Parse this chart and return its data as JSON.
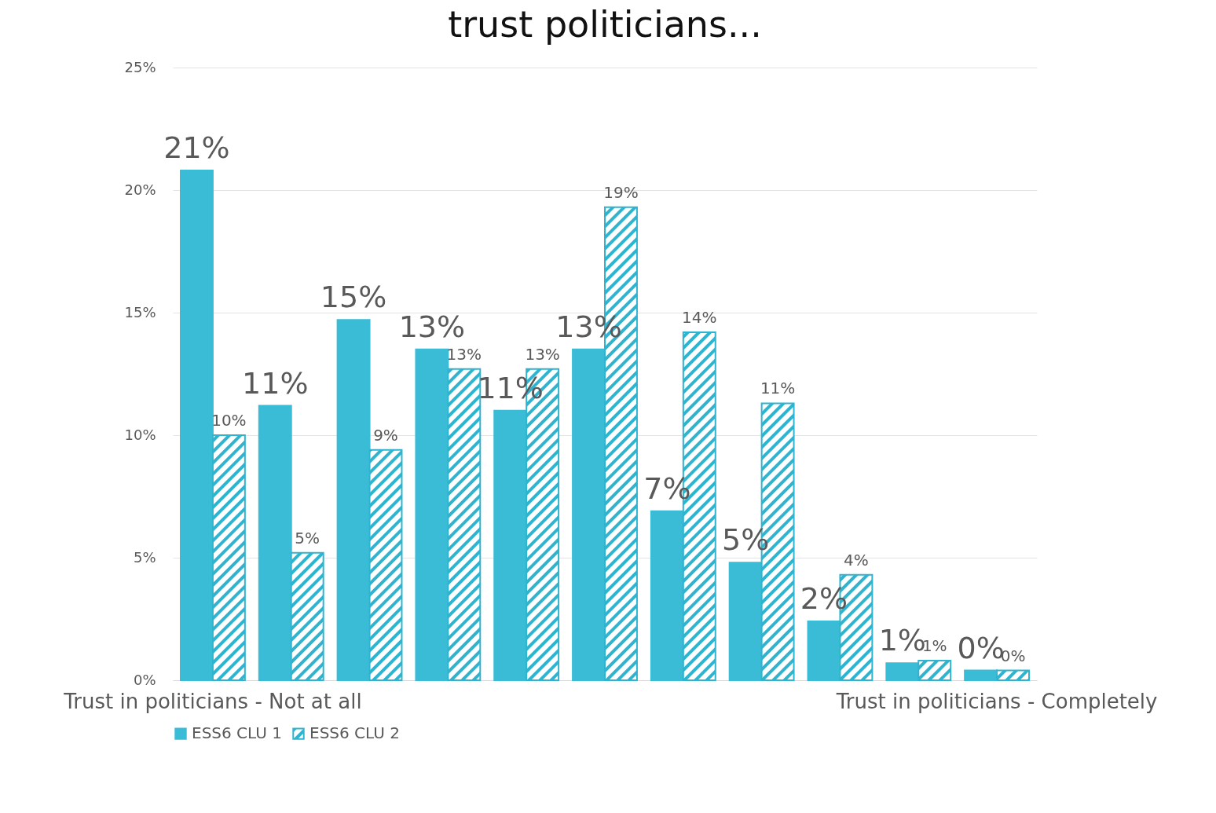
{
  "chart_data": {
    "type": "bar",
    "title": "trust politicians...",
    "categories": [
      "Trust in politicians - Not at all",
      null,
      null,
      null,
      null,
      null,
      null,
      null,
      null,
      null,
      "Trust in politicians - Completely"
    ],
    "series": [
      {
        "name": "ESS6 CLU 1",
        "color": "#3bbcd6",
        "values": [
          20.8,
          11.2,
          14.7,
          13.5,
          11.0,
          13.5,
          6.9,
          4.8,
          2.4,
          0.7,
          0.4
        ],
        "value_labels": [
          "21%",
          "11%",
          "15%",
          "13%",
          "11%",
          "13%",
          "7%",
          "5%",
          "2%",
          "1%",
          "0%"
        ]
      },
      {
        "name": "ESS6 CLU 2",
        "color": "#2fb4d0",
        "values": [
          10.0,
          5.2,
          9.4,
          12.7,
          12.7,
          19.3,
          14.2,
          11.3,
          4.3,
          0.8,
          0.4
        ],
        "value_labels": [
          "10%",
          "5%",
          "9%",
          "13%",
          "13%",
          "19%",
          "14%",
          "11%",
          "4%",
          "1%",
          "0%"
        ]
      }
    ],
    "ylim": [
      0,
      25
    ],
    "yticks": [
      {
        "value": 0,
        "label": "0%"
      },
      {
        "value": 5,
        "label": "5%"
      },
      {
        "value": 10,
        "label": "10%"
      },
      {
        "value": 15,
        "label": "15%"
      },
      {
        "value": 20,
        "label": "20%"
      },
      {
        "value": 25,
        "label": "25%"
      }
    ],
    "grid": "y",
    "legend": "bottom"
  }
}
